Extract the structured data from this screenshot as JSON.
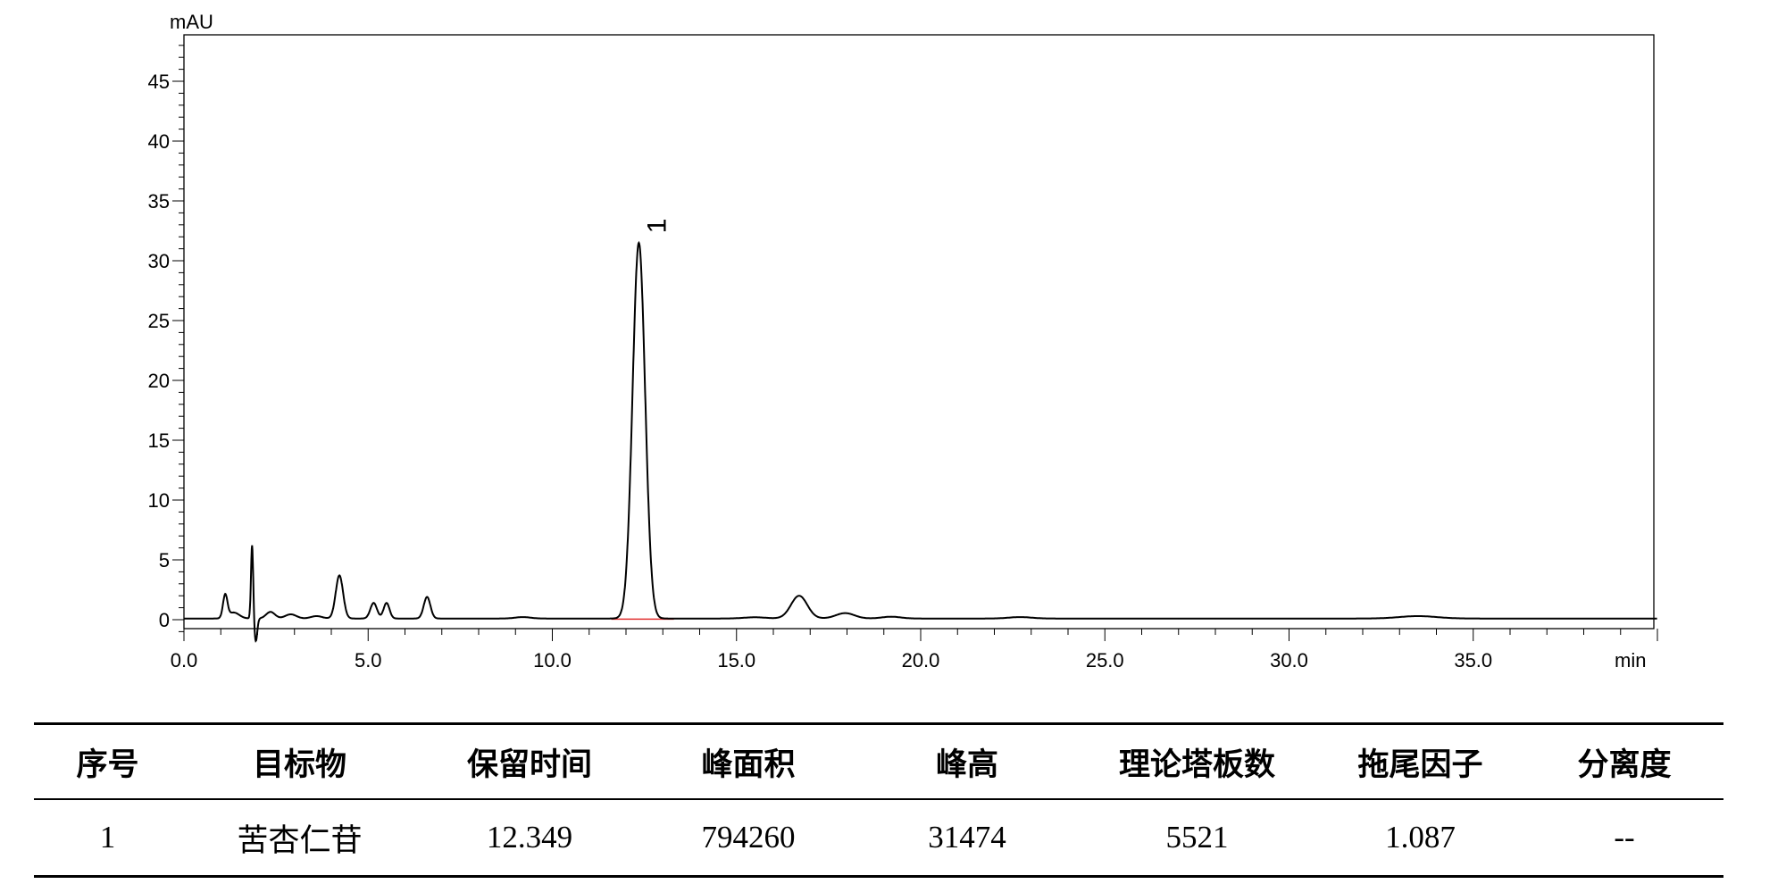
{
  "chart_data": {
    "type": "line",
    "ylabel": "mAU",
    "xlabel": "min",
    "xlim": [
      0,
      40
    ],
    "ylim": [
      -1.5,
      49
    ],
    "x_ticks": [
      0,
      5,
      10,
      15,
      20,
      25,
      30,
      35
    ],
    "x_tick_labels": [
      "0.0",
      "5.0",
      "10.0",
      "15.0",
      "20.0",
      "25.0",
      "30.0",
      "35.0"
    ],
    "y_ticks": [
      0,
      5,
      10,
      15,
      20,
      25,
      30,
      35,
      40,
      45
    ],
    "y_tick_labels": [
      "0",
      "5",
      "10",
      "15",
      "20",
      "25",
      "30",
      "35",
      "40",
      "45"
    ],
    "grid": false,
    "baseline": 0.1,
    "peaks": [
      {
        "rt": 1.12,
        "height": 1.9,
        "width": 0.06
      },
      {
        "rt": 1.35,
        "height": 0.5,
        "width": 0.15
      },
      {
        "rt": 1.85,
        "height": 6.2,
        "width": 0.03
      },
      {
        "rt": 1.95,
        "height": -1.9,
        "width": 0.04
      },
      {
        "rt": 2.35,
        "height": 0.55,
        "width": 0.12
      },
      {
        "rt": 2.9,
        "height": 0.35,
        "width": 0.15
      },
      {
        "rt": 3.6,
        "height": 0.2,
        "width": 0.15
      },
      {
        "rt": 4.22,
        "height": 3.6,
        "width": 0.1
      },
      {
        "rt": 5.15,
        "height": 1.3,
        "width": 0.09
      },
      {
        "rt": 5.5,
        "height": 1.3,
        "width": 0.08
      },
      {
        "rt": 6.6,
        "height": 1.8,
        "width": 0.09
      },
      {
        "rt": 9.2,
        "height": 0.12,
        "width": 0.2
      },
      {
        "rt": 12.349,
        "height": 31.4,
        "width": 0.17
      },
      {
        "rt": 15.5,
        "height": 0.1,
        "width": 0.3
      },
      {
        "rt": 16.7,
        "height": 1.9,
        "width": 0.22
      },
      {
        "rt": 17.95,
        "height": 0.45,
        "width": 0.25
      },
      {
        "rt": 19.2,
        "height": 0.15,
        "width": 0.25
      },
      {
        "rt": 22.7,
        "height": 0.12,
        "width": 0.3
      },
      {
        "rt": 33.5,
        "height": 0.2,
        "width": 0.5
      }
    ],
    "integration_baseline": {
      "x": [
        11.6,
        13.3
      ],
      "color": "#e03030"
    },
    "annotations": [
      {
        "text": "1",
        "x": 12.349,
        "y": 31.4
      }
    ],
    "line_color": "#000000"
  },
  "table": {
    "headers": [
      "序号",
      "目标物",
      "保留时间",
      "峰面积",
      "峰高",
      "理论塔板数",
      "拖尾因子",
      "分离度"
    ],
    "rows": [
      [
        "1",
        "苦杏仁苷",
        "12.349",
        "794260",
        "31474",
        "5521",
        "1.087",
        "--"
      ]
    ]
  }
}
